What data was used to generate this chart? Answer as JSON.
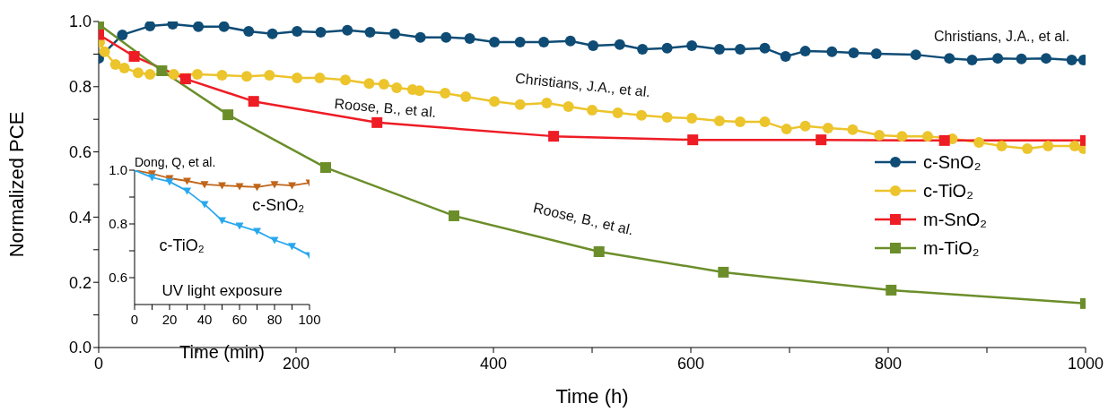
{
  "chart_data": [
    {
      "type": "line",
      "xlabel": "Time (h)",
      "ylabel": "Normalized PCE",
      "xlim": [
        0,
        1000
      ],
      "ylim": [
        0,
        1
      ],
      "xticks": [
        0,
        {
          "value": 100,
          "label": null
        },
        200,
        {
          "value": 300,
          "label": null
        },
        400,
        {
          "value": 500,
          "label": null
        },
        600,
        {
          "value": 700,
          "label": null
        },
        800,
        {
          "value": 900,
          "label": null
        },
        1000
      ],
      "yticks": [
        {
          "value": 0,
          "label": "0.0"
        },
        {
          "value": 0.1,
          "label": null
        },
        0.2,
        {
          "value": 0.3,
          "label": null
        },
        0.4,
        {
          "value": 0.5,
          "label": null
        },
        0.6,
        {
          "value": 0.7,
          "label": null
        },
        0.8,
        {
          "value": 0.9,
          "label": null
        },
        {
          "value": 1,
          "label": "1.0"
        }
      ],
      "grid": false,
      "legend": "right",
      "line_style": "solid",
      "annotations": [
        "Christians, J.A., et al.",
        "Christians, J.A., et al.",
        "Roose, B., et al.",
        "Roose, B., et al."
      ],
      "series": [
        {
          "name": "c-SnO₂",
          "color": "#0f4c75",
          "marker": "circle",
          "x": [
            0,
            24,
            52,
            75,
            101,
            127,
            152,
            176,
            201,
            225,
            252,
            275,
            300,
            326,
            352,
            376,
            401,
            427,
            451,
            478,
            501,
            528,
            551,
            576,
            601,
            629,
            650,
            675,
            696,
            716,
            743,
            765,
            788,
            828,
            862,
            885,
            911,
            935,
            960,
            986,
            998
          ],
          "values": [
            0.887,
            0.959,
            0.986,
            0.992,
            0.984,
            0.984,
            0.97,
            0.962,
            0.97,
            0.967,
            0.973,
            0.967,
            0.962,
            0.951,
            0.951,
            0.948,
            0.937,
            0.937,
            0.937,
            0.94,
            0.926,
            0.929,
            0.915,
            0.918,
            0.926,
            0.915,
            0.915,
            0.918,
            0.893,
            0.909,
            0.907,
            0.904,
            0.901,
            0.898,
            0.887,
            0.882,
            0.887,
            0.885,
            0.887,
            0.882,
            0.882
          ]
        },
        {
          "name": "c-TiO₂",
          "color": "#ecc42c",
          "marker": "circle",
          "x": [
            0,
            1,
            6,
            17,
            26,
            40,
            52,
            76,
            100,
            125,
            150,
            173,
            201,
            224,
            250,
            274,
            289,
            302,
            318,
            325,
            351,
            372,
            401,
            427,
            454,
            476,
            500,
            526,
            550,
            576,
            601,
            629,
            650,
            675,
            697,
            716,
            739,
            764,
            791,
            814,
            840,
            865,
            892,
            915,
            941,
            962,
            989,
            998
          ],
          "values": [
            0.967,
            0.937,
            0.907,
            0.868,
            0.857,
            0.843,
            0.838,
            0.838,
            0.838,
            0.835,
            0.832,
            0.835,
            0.827,
            0.827,
            0.821,
            0.81,
            0.808,
            0.797,
            0.791,
            0.788,
            0.78,
            0.769,
            0.755,
            0.745,
            0.75,
            0.739,
            0.728,
            0.72,
            0.712,
            0.706,
            0.703,
            0.695,
            0.692,
            0.692,
            0.67,
            0.679,
            0.673,
            0.668,
            0.651,
            0.648,
            0.648,
            0.64,
            0.629,
            0.618,
            0.61,
            0.618,
            0.618,
            0.61
          ]
        },
        {
          "name": "m-SnO₂",
          "color": "#ee1c24",
          "marker": "square",
          "x": [
            0,
            36,
            88,
            157,
            282,
            461,
            602,
            732,
            857,
            1000
          ],
          "values": [
            0.96,
            0.893,
            0.824,
            0.755,
            0.69,
            0.648,
            0.637,
            0.637,
            0.635,
            0.635
          ]
        },
        {
          "name": "m-TiO₂",
          "color": "#6b8e2a",
          "marker": "square",
          "x": [
            0,
            64,
            131,
            230,
            360,
            507,
            633,
            803,
            1000
          ],
          "values": [
            0.992,
            0.849,
            0.714,
            0.552,
            0.404,
            0.294,
            0.231,
            0.176,
            0.135
          ]
        }
      ]
    },
    {
      "type": "line",
      "xlabel": "Time (min)",
      "xlim": [
        0,
        100
      ],
      "ylim": [
        0.5,
        1
      ],
      "xticks": [
        0,
        {
          "value": 10,
          "label": null
        },
        20,
        {
          "value": 30,
          "label": null
        },
        40,
        {
          "value": 50,
          "label": null
        },
        60,
        {
          "value": 70,
          "label": null
        },
        80,
        {
          "value": 90,
          "label": null
        },
        100
      ],
      "yticks": [
        0.6,
        {
          "value": 0.7,
          "label": null
        },
        0.8,
        {
          "value": 0.9,
          "label": null
        },
        {
          "value": 1,
          "label": "1.0"
        }
      ],
      "grid": false,
      "legend": false,
      "marker": "triangle",
      "line_style": "solid",
      "annotations": [
        "Dong, Q, et al.",
        "UV light exposure"
      ],
      "series": [
        {
          "name": "c-SnO₂",
          "color": "#c0651a",
          "x": [
            0,
            10,
            20,
            30,
            40,
            50,
            60,
            70,
            80,
            90,
            100
          ],
          "values": [
            1.0,
            0.987,
            0.97,
            0.96,
            0.947,
            0.943,
            0.94,
            0.937,
            0.947,
            0.943,
            0.953
          ]
        },
        {
          "name": "c-TiO₂",
          "color": "#29a8ee",
          "x": [
            0,
            10,
            20,
            30,
            40,
            50,
            60,
            70,
            80,
            90,
            100
          ],
          "values": [
            1.0,
            0.973,
            0.957,
            0.923,
            0.873,
            0.813,
            0.793,
            0.773,
            0.74,
            0.717,
            0.683
          ]
        }
      ]
    }
  ]
}
